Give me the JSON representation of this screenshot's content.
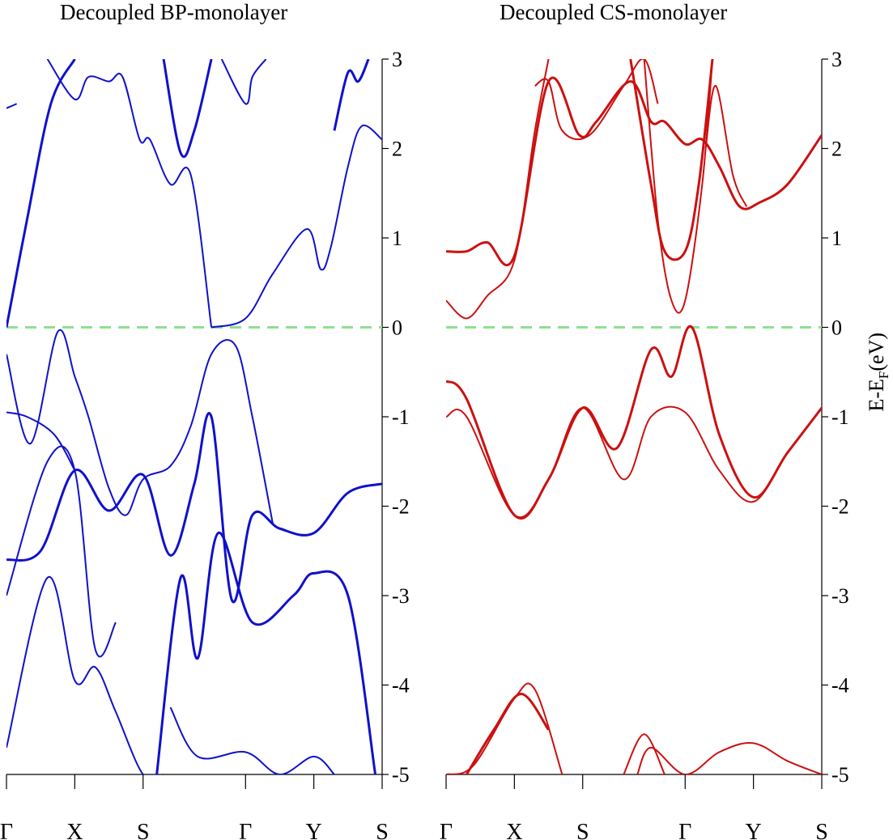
{
  "chart_data": [
    {
      "type": "line",
      "title": "Decoupled BP-monolayer",
      "xlabel": "",
      "ylabel": "",
      "k_points": [
        "Γ",
        "X",
        "S",
        "Γ",
        "Y",
        "S"
      ],
      "k_positions": [
        0,
        1,
        2,
        3.5,
        4.5,
        5.5
      ],
      "ylim": [
        -5,
        3
      ],
      "yticks": [
        3,
        2,
        1,
        0,
        -1,
        -2,
        -3,
        -4,
        -5
      ],
      "fermi_level": 0,
      "fermi_color": "#90e090",
      "line_color": "#1010cc",
      "bands": [
        {
          "name": "",
          "x": [
            0,
            0.3,
            0.65,
            1.0
          ],
          "y": [
            0.0,
            1.2,
            2.5,
            3.0
          ]
        },
        {
          "name": "",
          "x": [
            0.6,
            1.0,
            1.2,
            1.5,
            1.7,
            1.95,
            2.1,
            2.4,
            2.7,
            3.0
          ],
          "y": [
            3.0,
            2.55,
            2.8,
            2.75,
            2.8,
            2.1,
            2.1,
            1.6,
            1.7,
            0.0
          ]
        },
        {
          "name": "",
          "x": [
            3.0,
            3.5,
            3.9,
            4.4,
            4.6,
            4.75,
            5.0,
            5.2,
            5.5
          ],
          "y": [
            0.0,
            0.1,
            0.6,
            1.1,
            0.65,
            0.9,
            1.8,
            2.25,
            2.1
          ]
        },
        {
          "name": "",
          "x": [
            2.3,
            2.55,
            2.75,
            3.0
          ],
          "y": [
            3.0,
            1.95,
            2.2,
            3.0
          ]
        },
        {
          "name": "",
          "x": [
            3.15,
            3.5,
            3.6,
            3.8
          ],
          "y": [
            3.0,
            2.5,
            2.8,
            3.0
          ]
        },
        {
          "name": "",
          "x": [
            0,
            0.15
          ],
          "y": [
            2.45,
            2.5
          ]
        },
        {
          "name": "",
          "x": [
            4.8,
            5.0,
            5.15,
            5.3
          ],
          "y": [
            2.2,
            2.85,
            2.75,
            3.0
          ]
        },
        {
          "name": "",
          "x": [
            0,
            0.35,
            0.75,
            1.0,
            1.2,
            1.5,
            1.75,
            2.0,
            2.4,
            2.7,
            3.0,
            3.35,
            3.6,
            3.9
          ],
          "y": [
            -0.3,
            -1.3,
            -0.05,
            -0.55,
            -1.0,
            -1.8,
            -2.1,
            -1.7,
            -1.55,
            -1.1,
            -0.3,
            -0.2,
            -1.0,
            -2.2
          ]
        },
        {
          "name": "",
          "x": [
            0,
            0.3,
            0.7,
            1.0
          ],
          "y": [
            -0.95,
            -1.0,
            -1.2,
            -1.6
          ]
        },
        {
          "name": "",
          "x": [
            0,
            0.5,
            1.0,
            1.5,
            2.0,
            2.4,
            2.75,
            3.0,
            3.3,
            3.6,
            4.0,
            4.5,
            5.0,
            5.5
          ],
          "y": [
            -2.6,
            -2.5,
            -1.6,
            -2.05,
            -1.65,
            -2.55,
            -1.75,
            -1.0,
            -3.05,
            -2.1,
            -2.25,
            -2.3,
            -1.85,
            -1.75
          ]
        },
        {
          "name": "",
          "x": [
            0,
            0.6,
            1.0,
            1.3,
            1.6
          ],
          "y": [
            -3.0,
            -1.5,
            -1.6,
            -3.6,
            -3.3
          ]
        },
        {
          "name": "",
          "x": [
            0,
            0.6,
            1.0,
            1.3,
            1.6,
            2.0,
            2.3
          ],
          "y": [
            -4.7,
            -2.8,
            -3.95,
            -3.8,
            -4.3,
            -5.0,
            -5.0
          ]
        },
        {
          "name": "",
          "x": [
            2.2,
            2.55,
            2.8,
            3.1,
            3.6,
            4.2,
            4.5,
            5.0,
            5.4
          ],
          "y": [
            -5.0,
            -2.8,
            -3.7,
            -2.3,
            -3.3,
            -3.0,
            -2.75,
            -3.0,
            -5.0
          ]
        },
        {
          "name": "",
          "x": [
            2.4,
            2.8,
            3.5,
            4.0,
            4.5,
            4.8
          ],
          "y": [
            -4.25,
            -4.8,
            -4.75,
            -5.0,
            -4.8,
            -5.0
          ]
        }
      ]
    },
    {
      "type": "line",
      "title": "Decoupled CS-monolayer",
      "xlabel": "",
      "ylabel": "E-E_F(eV)",
      "ylabel_main": "E-E",
      "ylabel_sub": "F",
      "ylabel_unit": "(eV)",
      "k_points": [
        "Γ",
        "X",
        "S",
        "Γ",
        "Y",
        "S"
      ],
      "k_positions": [
        0,
        1,
        2,
        3.5,
        4.5,
        5.5
      ],
      "ylim": [
        -5,
        3
      ],
      "yticks": [
        3,
        2,
        1,
        0,
        -1,
        -2,
        -3,
        -4,
        -5
      ],
      "fermi_level": 0,
      "fermi_color": "#90e090",
      "line_color": "#cc1010",
      "bands": [
        {
          "name": "",
          "x": [
            0,
            0.3,
            0.6,
            1.0,
            1.5,
            1.95,
            2.2,
            2.7,
            3.0,
            3.2,
            3.5,
            3.75,
            4.0,
            4.3,
            4.6,
            5.0,
            5.5
          ],
          "y": [
            0.85,
            0.85,
            0.95,
            0.8,
            2.75,
            2.15,
            2.3,
            2.75,
            2.3,
            2.3,
            2.05,
            2.1,
            1.8,
            1.35,
            1.4,
            1.6,
            2.15
          ]
        },
        {
          "name": "",
          "x": [
            0,
            0.3,
            0.6,
            1.0,
            1.3,
            1.5
          ],
          "y": [
            0.3,
            0.1,
            0.35,
            0.75,
            2.2,
            3.0
          ]
        },
        {
          "name": "",
          "x": [
            1.3,
            1.5,
            1.7,
            2.1,
            2.6,
            2.9,
            3.1
          ],
          "y": [
            2.7,
            2.75,
            2.2,
            2.15,
            2.7,
            3.0,
            2.5
          ]
        },
        {
          "name": "",
          "x": [
            2.7,
            3.0,
            3.2,
            3.5,
            3.7,
            3.9
          ],
          "y": [
            3.0,
            1.6,
            0.85,
            0.85,
            1.6,
            3.0
          ]
        },
        {
          "name": "",
          "x": [
            3.8,
            3.95,
            4.2,
            4.4
          ],
          "y": [
            2.0,
            2.7,
            1.7,
            1.35
          ]
        },
        {
          "name": "",
          "x": [
            2.9,
            3.1,
            3.3,
            3.5,
            3.75,
            3.9
          ],
          "y": [
            3.0,
            1.2,
            0.3,
            0.3,
            1.6,
            3.0
          ]
        },
        {
          "name": "",
          "x": [
            0,
            0.3,
            1.0,
            1.5,
            2.0,
            2.5,
            3.0,
            3.3,
            3.6,
            4.0,
            4.5,
            5.0,
            5.5
          ],
          "y": [
            -0.6,
            -0.8,
            -2.1,
            -1.7,
            -0.9,
            -1.35,
            -0.25,
            -0.55,
            0.0,
            -1.2,
            -1.9,
            -1.4,
            -0.9
          ]
        },
        {
          "name": "",
          "x": [
            0,
            0.3,
            1.0,
            1.5,
            2.0,
            2.6,
            3.0,
            3.5,
            4.0,
            4.5,
            5.0,
            5.5
          ],
          "y": [
            -1.0,
            -1.0,
            -2.1,
            -1.7,
            -0.9,
            -1.7,
            -1.0,
            -0.95,
            -1.6,
            -1.95,
            -1.4,
            -0.9
          ]
        },
        {
          "name": "",
          "x": [
            0,
            0.4,
            1.0,
            1.3,
            1.7
          ],
          "y": [
            -5.0,
            -4.9,
            -4.15,
            -4.05,
            -5.0
          ]
        },
        {
          "name": "",
          "x": [
            0.3,
            0.7,
            1.1,
            1.5
          ],
          "y": [
            -5.0,
            -4.5,
            -4.1,
            -4.5
          ]
        },
        {
          "name": "",
          "x": [
            2.6,
            2.9,
            3.2
          ],
          "y": [
            -5.0,
            -4.55,
            -5.0
          ]
        },
        {
          "name": "",
          "x": [
            2.8,
            3.0,
            3.5,
            4.0,
            4.5,
            5.0,
            5.5
          ],
          "y": [
            -5.0,
            -4.7,
            -5.0,
            -4.75,
            -4.65,
            -4.85,
            -5.0
          ]
        }
      ]
    }
  ]
}
